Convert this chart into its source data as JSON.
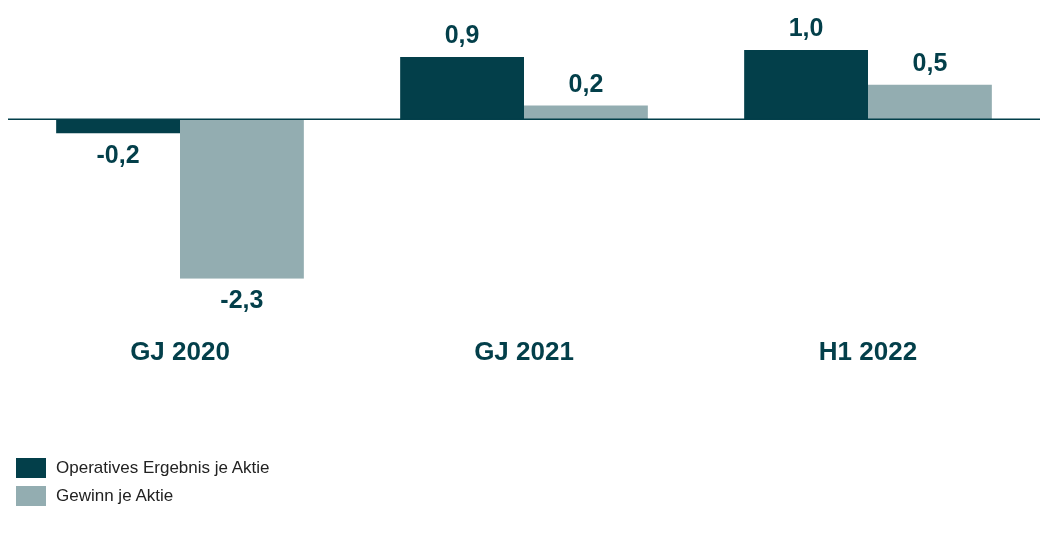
{
  "chart_data": {
    "type": "bar",
    "categories": [
      "GJ 2020",
      "GJ 2021",
      "H1 2022"
    ],
    "series": [
      {
        "name": "Operatives Ergebnis je Aktie",
        "color": "#033f4a",
        "values": [
          -0.2,
          0.9,
          1.0
        ],
        "value_labels": [
          "-0,2",
          "0,9",
          "1,0"
        ]
      },
      {
        "name": "Gewinn je Aktie",
        "color": "#93adb1",
        "values": [
          -2.3,
          0.2,
          0.5
        ],
        "value_labels": [
          "-2,3",
          "0,2",
          "0,5"
        ]
      }
    ],
    "legend": "bottom left",
    "grid": false
  }
}
